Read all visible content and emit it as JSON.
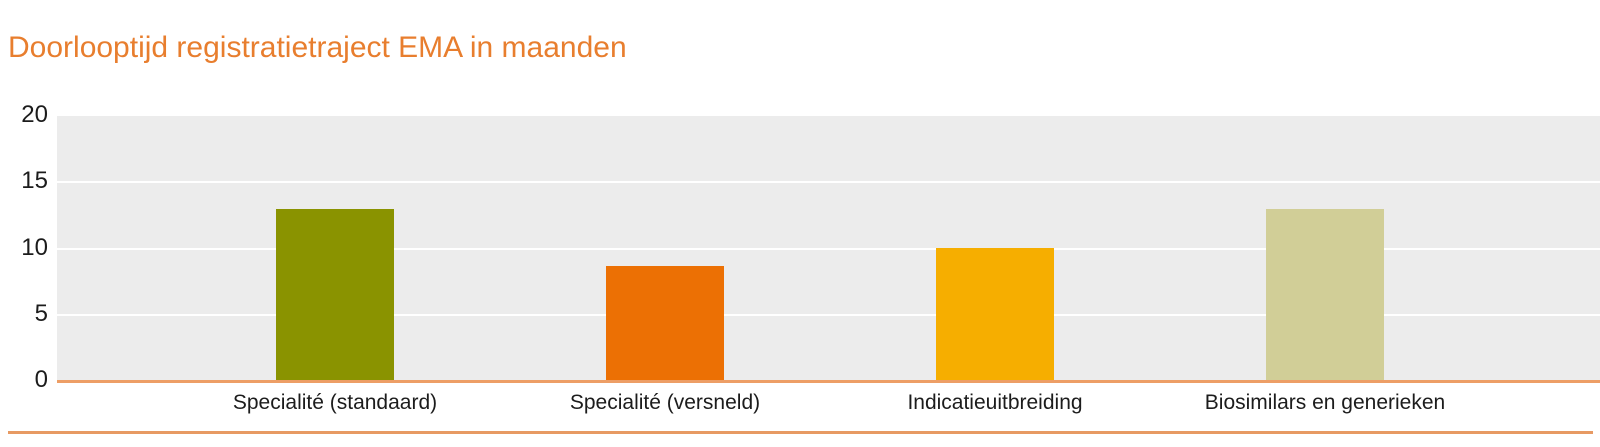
{
  "chart_data": {
    "type": "bar",
    "title": "Doorlooptijd registratietraject EMA in maanden",
    "categories": [
      "Specialité (standaard)",
      "Specialité (versneld)",
      "Indicatieuitbreiding",
      "Biosimilars en generieken"
    ],
    "values": [
      13,
      8.7,
      10,
      13
    ],
    "bar_colors": [
      "#8a9300",
      "#ec7004",
      "#f6ae00",
      "#d1ce97"
    ],
    "yticks": [
      0,
      5,
      10,
      15,
      20
    ],
    "ylim": [
      0,
      20
    ],
    "xlabel": "",
    "ylabel": "",
    "grid": "horizontal",
    "legend_position": "none"
  },
  "colors": {
    "title_text": "#e87e2e",
    "plot_background": "#ececec",
    "gridline": "#ffffff",
    "axis_baseline": "#ed9e66",
    "bottom_rule": "#e79a63",
    "tick_text": "#1c1c1c"
  }
}
